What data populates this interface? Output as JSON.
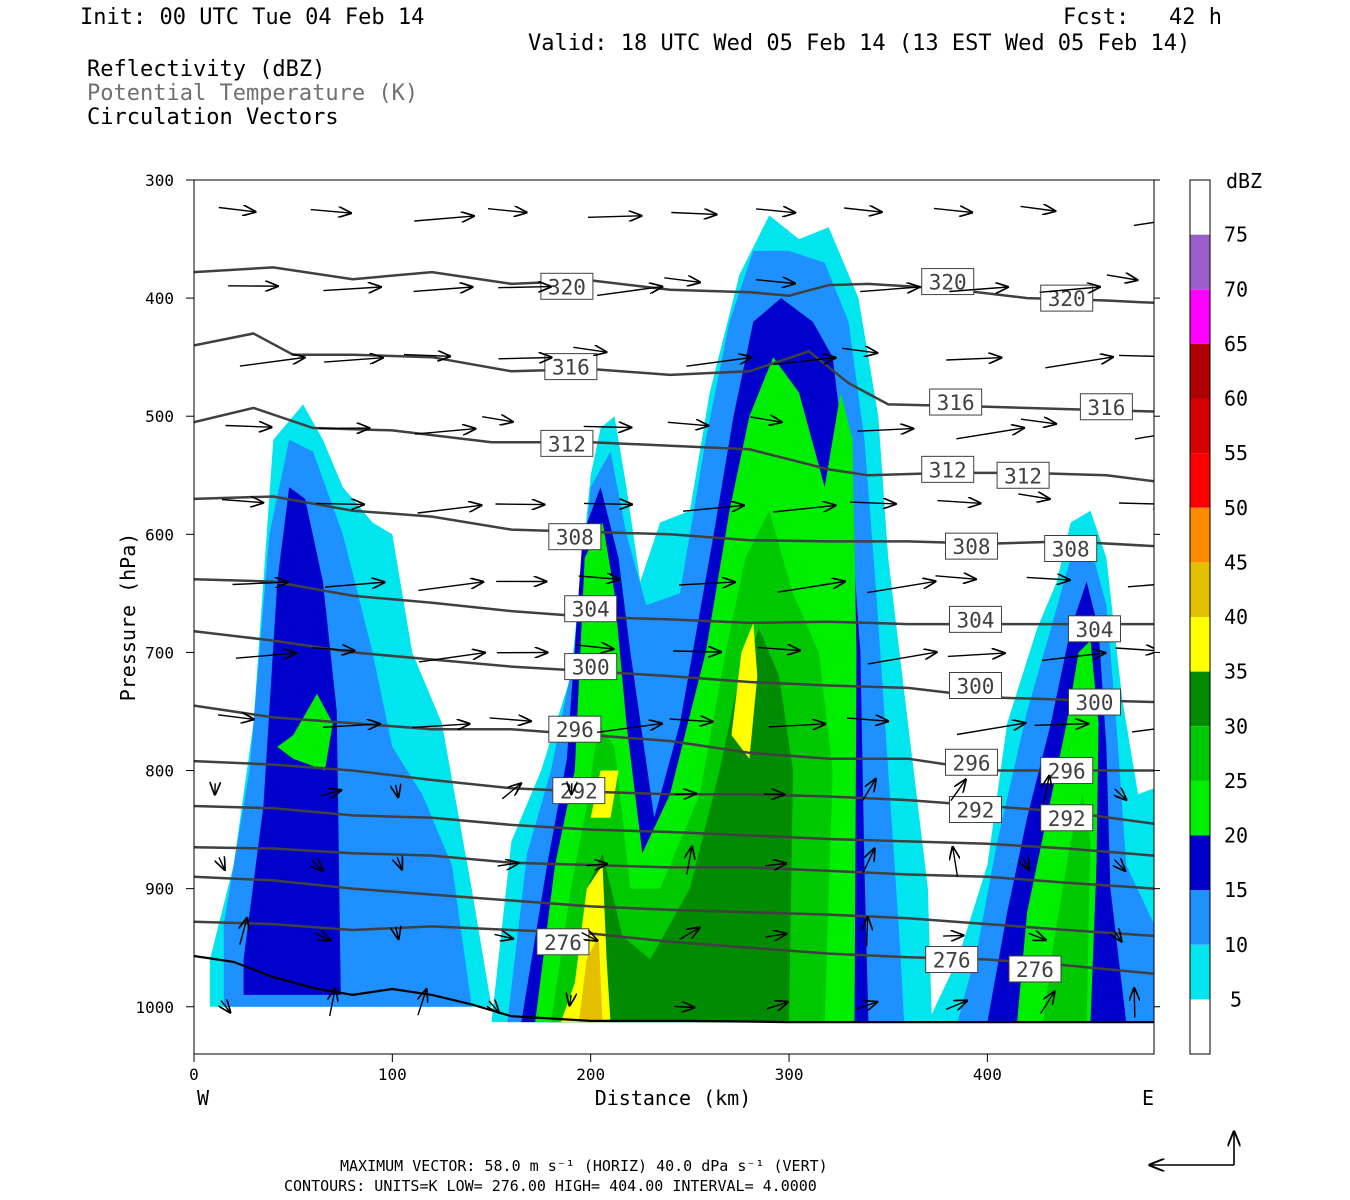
{
  "header": {
    "init": "Init: 00 UTC Tue 04 Feb 14",
    "fcst": "Fcst:   42 h",
    "valid": "Valid: 18 UTC Wed 05 Feb 14 (13 EST Wed 05 Feb 14)",
    "field1": "Reflectivity (dBZ)",
    "field2": "Potential Temperature (K)",
    "field3": "Circulation Vectors"
  },
  "footer": {
    "line1": "MAXIMUM VECTOR:  58.0 m s⁻¹ (HORIZ)        40.0 dPa s⁻¹ (VERT)",
    "line2": "CONTOURS:  UNITS=K  LOW=  276.00       HIGH=  404.00       INTERVAL=    4.0000"
  },
  "chart_data": {
    "type": "cross-section",
    "xlabel": "Distance (km)",
    "ylabel": "Pressure (hPa)",
    "xlim": [
      0,
      484
    ],
    "ylim": [
      1040,
      300
    ],
    "x_ticks": [
      0,
      100,
      200,
      300,
      400
    ],
    "y_ticks": [
      300,
      400,
      500,
      600,
      700,
      800,
      900,
      1000
    ],
    "x_end_labels": {
      "left": "W",
      "right": "E"
    },
    "colorbar": {
      "unit": "dBZ",
      "levels": [
        5,
        10,
        15,
        20,
        25,
        30,
        35,
        40,
        45,
        50,
        55,
        60,
        65,
        70,
        75
      ],
      "colors": [
        "#ffffff",
        "#00e5ee",
        "#1e90ff",
        "#0000cd",
        "#00ee00",
        "#00c800",
        "#008b00",
        "#ffff00",
        "#e5c000",
        "#ff8c00",
        "#ff0000",
        "#d70000",
        "#b00000",
        "#ff00ff",
        "#9a5fc8",
        "#ffffff"
      ]
    },
    "theta_contours": [
      {
        "label": "320",
        "points": [
          [
            0,
            378
          ],
          [
            40,
            374
          ],
          [
            80,
            384
          ],
          [
            120,
            378
          ],
          [
            160,
            388
          ],
          [
            200,
            385
          ],
          [
            240,
            393
          ],
          [
            280,
            395
          ],
          [
            300,
            398
          ],
          [
            320,
            389
          ],
          [
            340,
            388
          ],
          [
            380,
            392
          ],
          [
            420,
            400
          ],
          [
            460,
            402
          ],
          [
            484,
            404
          ]
        ]
      },
      {
        "label": "316",
        "points": [
          [
            0,
            440
          ],
          [
            30,
            430
          ],
          [
            50,
            448
          ],
          [
            80,
            448
          ],
          [
            120,
            450
          ],
          [
            160,
            462
          ],
          [
            200,
            460
          ],
          [
            240,
            465
          ],
          [
            280,
            462
          ],
          [
            310,
            445
          ],
          [
            330,
            472
          ],
          [
            350,
            490
          ],
          [
            400,
            492
          ],
          [
            440,
            494
          ],
          [
            484,
            496
          ]
        ]
      },
      {
        "label": "312",
        "points": [
          [
            0,
            505
          ],
          [
            30,
            493
          ],
          [
            60,
            510
          ],
          [
            100,
            512
          ],
          [
            150,
            522
          ],
          [
            200,
            522
          ],
          [
            240,
            525
          ],
          [
            280,
            528
          ],
          [
            320,
            545
          ],
          [
            340,
            550
          ],
          [
            380,
            548
          ],
          [
            420,
            548
          ],
          [
            460,
            550
          ],
          [
            484,
            555
          ]
        ]
      },
      {
        "label": "308",
        "points": [
          [
            0,
            570
          ],
          [
            40,
            568
          ],
          [
            80,
            580
          ],
          [
            120,
            585
          ],
          [
            160,
            596
          ],
          [
            200,
            598
          ],
          [
            240,
            600
          ],
          [
            280,
            605
          ],
          [
            320,
            606
          ],
          [
            360,
            606
          ],
          [
            400,
            608
          ],
          [
            440,
            606
          ],
          [
            484,
            610
          ]
        ]
      },
      {
        "label": "304",
        "points": [
          [
            0,
            638
          ],
          [
            40,
            640
          ],
          [
            80,
            652
          ],
          [
            120,
            658
          ],
          [
            160,
            665
          ],
          [
            200,
            670
          ],
          [
            240,
            672
          ],
          [
            280,
            675
          ],
          [
            320,
            674
          ],
          [
            360,
            676
          ],
          [
            400,
            676
          ],
          [
            440,
            676
          ],
          [
            484,
            676
          ]
        ]
      },
      {
        "label": "300",
        "points": [
          [
            0,
            682
          ],
          [
            40,
            690
          ],
          [
            80,
            700
          ],
          [
            120,
            706
          ],
          [
            160,
            712
          ],
          [
            200,
            716
          ],
          [
            240,
            720
          ],
          [
            280,
            725
          ],
          [
            320,
            728
          ],
          [
            360,
            730
          ],
          [
            400,
            738
          ],
          [
            440,
            740
          ],
          [
            484,
            742
          ]
        ]
      },
      {
        "label": "296",
        "points": [
          [
            0,
            745
          ],
          [
            40,
            755
          ],
          [
            80,
            760
          ],
          [
            120,
            765
          ],
          [
            160,
            765
          ],
          [
            200,
            770
          ],
          [
            240,
            775
          ],
          [
            280,
            785
          ],
          [
            320,
            790
          ],
          [
            360,
            790
          ],
          [
            400,
            800
          ],
          [
            440,
            800
          ],
          [
            484,
            800
          ]
        ]
      },
      {
        "label": "292",
        "points": [
          [
            0,
            792
          ],
          [
            40,
            795
          ],
          [
            80,
            800
          ],
          [
            120,
            808
          ],
          [
            160,
            815
          ],
          [
            200,
            818
          ],
          [
            240,
            820
          ],
          [
            280,
            820
          ],
          [
            320,
            822
          ],
          [
            360,
            825
          ],
          [
            400,
            830
          ],
          [
            440,
            835
          ],
          [
            484,
            845
          ]
        ]
      },
      {
        "label": "",
        "points": [
          [
            0,
            830
          ],
          [
            40,
            832
          ],
          [
            80,
            838
          ],
          [
            120,
            840
          ],
          [
            160,
            846
          ],
          [
            200,
            850
          ],
          [
            240,
            852
          ],
          [
            280,
            855
          ],
          [
            320,
            858
          ],
          [
            360,
            860
          ],
          [
            400,
            862
          ],
          [
            440,
            866
          ],
          [
            484,
            872
          ]
        ]
      },
      {
        "label": "",
        "points": [
          [
            0,
            865
          ],
          [
            40,
            866
          ],
          [
            80,
            870
          ],
          [
            120,
            872
          ],
          [
            160,
            878
          ],
          [
            200,
            880
          ],
          [
            240,
            882
          ],
          [
            280,
            882
          ],
          [
            320,
            885
          ],
          [
            360,
            888
          ],
          [
            400,
            890
          ],
          [
            440,
            895
          ],
          [
            484,
            900
          ]
        ]
      },
      {
        "label": "",
        "points": [
          [
            0,
            890
          ],
          [
            40,
            893
          ],
          [
            80,
            900
          ],
          [
            120,
            905
          ],
          [
            160,
            910
          ],
          [
            200,
            915
          ],
          [
            240,
            918
          ],
          [
            280,
            920
          ],
          [
            320,
            922
          ],
          [
            360,
            925
          ],
          [
            400,
            930
          ],
          [
            440,
            935
          ],
          [
            484,
            940
          ]
        ]
      },
      {
        "label": "276",
        "points": [
          [
            0,
            928
          ],
          [
            40,
            930
          ],
          [
            80,
            935
          ],
          [
            120,
            932
          ],
          [
            160,
            935
          ],
          [
            200,
            938
          ],
          [
            240,
            945
          ],
          [
            280,
            950
          ],
          [
            320,
            955
          ],
          [
            360,
            958
          ],
          [
            400,
            960
          ],
          [
            440,
            965
          ],
          [
            484,
            972
          ]
        ]
      }
    ],
    "terrain": [
      [
        0,
        957
      ],
      [
        20,
        962
      ],
      [
        40,
        975
      ],
      [
        60,
        984
      ],
      [
        80,
        990
      ],
      [
        100,
        985
      ],
      [
        120,
        990
      ],
      [
        140,
        998
      ],
      [
        160,
        1008
      ],
      [
        200,
        1012
      ],
      [
        250,
        1012
      ],
      [
        300,
        1013
      ],
      [
        350,
        1013
      ],
      [
        400,
        1013
      ],
      [
        484,
        1013
      ]
    ]
  }
}
